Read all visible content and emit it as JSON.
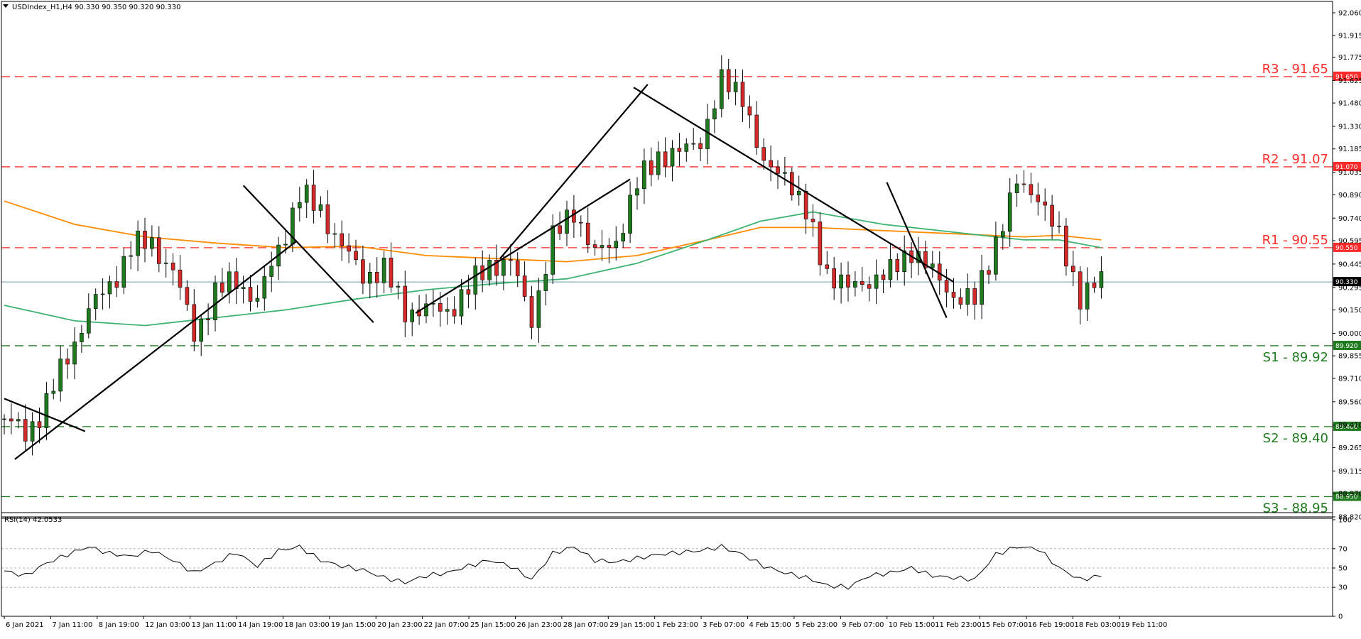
{
  "window": {
    "header": "USDIndex_H1,H4  90.330 90.350 90.320 90.330",
    "rsi_header": "RSI(14) 42.0533",
    "header_icon": "triangle-down-icon"
  },
  "colors": {
    "candle_up": "#1f7a1f",
    "candle_down": "#d42a2a",
    "ma_fast": "#3cb371",
    "ma_slow": "#ff8c00",
    "resistance": "#ff2a2a",
    "support": "#1f7a1f",
    "price_line": "#6a9aa8",
    "trendline": "#000000",
    "rsi_line": "#000000"
  },
  "chart_data": [
    {
      "type": "candlestick",
      "symbol": "USDIndex_H1,H4",
      "ylim": [
        88.82,
        92.06
      ],
      "y_ticks": [
        "92.060",
        "91.915",
        "91.775",
        "91.625",
        "91.480",
        "91.330",
        "91.185",
        "91.035",
        "90.890",
        "90.740",
        "90.595",
        "90.445",
        "90.295",
        "90.150",
        "90.000",
        "89.855",
        "89.710",
        "89.560",
        "89.410",
        "89.265",
        "89.115",
        "88.970",
        "88.820"
      ],
      "x_ticks": [
        "6 Jan 2021",
        "7 Jan 11:00",
        "8 Jan 19:00",
        "12 Jan 03:00",
        "13 Jan 11:00",
        "14 Jan 19:00",
        "18 Jan 03:00",
        "19 Jan 15:00",
        "20 Jan 23:00",
        "22 Jan 07:00",
        "25 Jan 15:00",
        "26 Jan 23:00",
        "28 Jan 07:00",
        "29 Jan 15:00",
        "1 Feb 23:00",
        "3 Feb 07:00",
        "4 Feb 15:00",
        "5 Feb 23:00",
        "9 Feb 07:00",
        "10 Feb 15:00",
        "11 Feb 23:00",
        "15 Feb 07:00",
        "16 Feb 19:00",
        "18 Feb 03:00",
        "19 Feb 11:00"
      ],
      "levels": [
        {
          "label": "R3 - 91.65",
          "value": 91.65,
          "tag": "91.650",
          "kind": "resistance"
        },
        {
          "label": "R2 - 91.07",
          "value": 91.07,
          "tag": "91.070",
          "kind": "resistance"
        },
        {
          "label": "R1 - 90.55",
          "value": 90.55,
          "tag": "90.550",
          "kind": "resistance"
        },
        {
          "label": "S1 - 89.92",
          "value": 89.92,
          "tag": "89.920",
          "kind": "support"
        },
        {
          "label": "S2 - 89.40",
          "value": 89.4,
          "tag": "89.400",
          "kind": "support"
        },
        {
          "label": "S3 - 88.95",
          "value": 88.95,
          "tag": "88.950",
          "kind": "support"
        }
      ],
      "last_price": {
        "value": 90.33,
        "tag": "90.330"
      },
      "close_path": [
        [
          0,
          89.45
        ],
        [
          6,
          89.35
        ],
        [
          12,
          89.55
        ],
        [
          18,
          89.85
        ],
        [
          24,
          90.15
        ],
        [
          30,
          90.3
        ],
        [
          36,
          90.55
        ],
        [
          42,
          90.58
        ],
        [
          48,
          90.4
        ],
        [
          54,
          90.0
        ],
        [
          60,
          90.25
        ],
        [
          66,
          90.35
        ],
        [
          72,
          90.2
        ],
        [
          78,
          90.55
        ],
        [
          84,
          90.88
        ],
        [
          90,
          90.8
        ],
        [
          96,
          90.55
        ],
        [
          102,
          90.38
        ],
        [
          108,
          90.4
        ],
        [
          114,
          90.15
        ],
        [
          120,
          90.15
        ],
        [
          126,
          90.15
        ],
        [
          132,
          90.28
        ],
        [
          138,
          90.45
        ],
        [
          144,
          90.45
        ],
        [
          150,
          90.1
        ],
        [
          156,
          90.6
        ],
        [
          162,
          90.8
        ],
        [
          168,
          90.5
        ],
        [
          174,
          90.6
        ],
        [
          180,
          90.95
        ],
        [
          186,
          91.15
        ],
        [
          192,
          91.15
        ],
        [
          198,
          91.25
        ],
        [
          204,
          91.6
        ],
        [
          210,
          91.55
        ],
        [
          216,
          91.05
        ],
        [
          222,
          91.05
        ],
        [
          228,
          90.75
        ],
        [
          234,
          90.4
        ],
        [
          240,
          90.28
        ],
        [
          246,
          90.35
        ],
        [
          252,
          90.38
        ],
        [
          258,
          90.55
        ],
        [
          264,
          90.38
        ],
        [
          270,
          90.25
        ],
        [
          276,
          90.2
        ],
        [
          282,
          90.6
        ],
        [
          288,
          90.95
        ],
        [
          294,
          90.9
        ],
        [
          300,
          90.6
        ],
        [
          306,
          90.25
        ],
        [
          312,
          90.33
        ]
      ],
      "ma_fast": [
        [
          0,
          90.18
        ],
        [
          20,
          90.08
        ],
        [
          40,
          90.05
        ],
        [
          60,
          90.1
        ],
        [
          80,
          90.15
        ],
        [
          100,
          90.22
        ],
        [
          120,
          90.28
        ],
        [
          140,
          90.32
        ],
        [
          160,
          90.35
        ],
        [
          180,
          90.45
        ],
        [
          200,
          90.6
        ],
        [
          215,
          90.72
        ],
        [
          230,
          90.78
        ],
        [
          250,
          90.7
        ],
        [
          270,
          90.65
        ],
        [
          290,
          90.6
        ],
        [
          300,
          90.6
        ],
        [
          312,
          90.55
        ]
      ],
      "ma_slow": [
        [
          0,
          90.85
        ],
        [
          20,
          90.7
        ],
        [
          40,
          90.62
        ],
        [
          60,
          90.58
        ],
        [
          80,
          90.55
        ],
        [
          100,
          90.56
        ],
        [
          120,
          90.5
        ],
        [
          140,
          90.48
        ],
        [
          160,
          90.46
        ],
        [
          180,
          90.5
        ],
        [
          200,
          90.6
        ],
        [
          215,
          90.68
        ],
        [
          230,
          90.68
        ],
        [
          250,
          90.66
        ],
        [
          270,
          90.64
        ],
        [
          290,
          90.62
        ],
        [
          300,
          90.63
        ],
        [
          312,
          90.6
        ]
      ],
      "trendlines": [
        [
          [
            0,
            89.58
          ],
          [
            23,
            89.37
          ]
        ],
        [
          [
            3,
            89.19
          ],
          [
            83,
            90.59
          ]
        ],
        [
          [
            68,
            90.95
          ],
          [
            105,
            90.07
          ]
        ],
        [
          [
            117,
            90.13
          ],
          [
            178,
            90.99
          ]
        ],
        [
          [
            141,
            90.48
          ],
          [
            183,
            91.6
          ]
        ],
        [
          [
            179,
            91.58
          ],
          [
            270,
            90.33
          ]
        ],
        [
          [
            251,
            90.97
          ],
          [
            268,
            90.1
          ]
        ]
      ]
    },
    {
      "type": "line",
      "name": "RSI(14)",
      "ylim": [
        0,
        100
      ],
      "y_ticks": [
        "100",
        "70",
        "50",
        "30",
        "0"
      ],
      "levels": [
        70,
        50,
        30
      ],
      "values": [
        [
          0,
          47
        ],
        [
          6,
          42
        ],
        [
          12,
          55
        ],
        [
          18,
          64
        ],
        [
          24,
          72
        ],
        [
          30,
          65
        ],
        [
          36,
          62
        ],
        [
          42,
          68
        ],
        [
          48,
          58
        ],
        [
          54,
          45
        ],
        [
          60,
          55
        ],
        [
          66,
          66
        ],
        [
          72,
          52
        ],
        [
          78,
          68
        ],
        [
          84,
          72
        ],
        [
          90,
          58
        ],
        [
          96,
          52
        ],
        [
          102,
          48
        ],
        [
          108,
          40
        ],
        [
          114,
          35
        ],
        [
          120,
          42
        ],
        [
          126,
          45
        ],
        [
          132,
          52
        ],
        [
          138,
          58
        ],
        [
          144,
          52
        ],
        [
          150,
          38
        ],
        [
          156,
          65
        ],
        [
          162,
          72
        ],
        [
          168,
          58
        ],
        [
          174,
          56
        ],
        [
          180,
          60
        ],
        [
          186,
          64
        ],
        [
          192,
          66
        ],
        [
          198,
          68
        ],
        [
          204,
          72
        ],
        [
          210,
          64
        ],
        [
          216,
          52
        ],
        [
          222,
          45
        ],
        [
          228,
          40
        ],
        [
          234,
          32
        ],
        [
          240,
          30
        ],
        [
          246,
          42
        ],
        [
          252,
          45
        ],
        [
          258,
          50
        ],
        [
          264,
          42
        ],
        [
          270,
          40
        ],
        [
          276,
          38
        ],
        [
          282,
          64
        ],
        [
          288,
          72
        ],
        [
          294,
          70
        ],
        [
          300,
          50
        ],
        [
          306,
          38
        ],
        [
          312,
          42
        ]
      ]
    }
  ]
}
